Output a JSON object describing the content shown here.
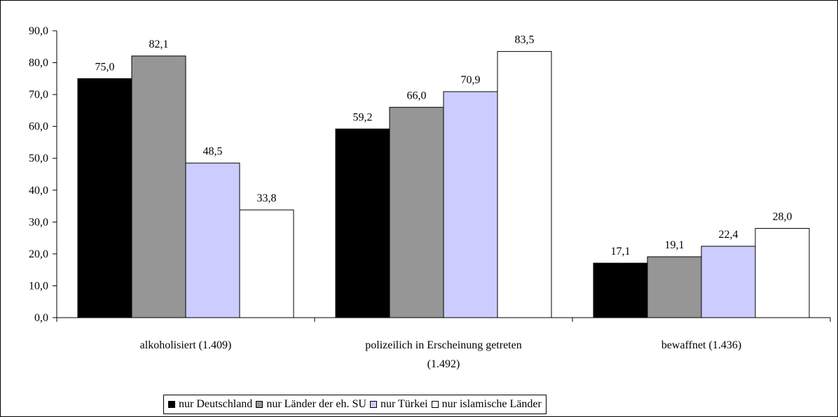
{
  "chart_data": {
    "type": "bar",
    "categories": [
      [
        "alkoholisiert (1.409)"
      ],
      [
        "polizeilich in Erscheinung getreten",
        "(1.492)"
      ],
      [
        "bewaffnet (1.436)"
      ]
    ],
    "series": [
      {
        "name": "nur  Deutschland",
        "color": "#000000",
        "values": [
          75.0,
          59.2,
          17.1
        ],
        "labels": [
          "75,0",
          "59,2",
          "17,1"
        ]
      },
      {
        "name": "nur Länder der eh. SU",
        "color": "#969696",
        "values": [
          82.1,
          66.0,
          19.1
        ],
        "labels": [
          "82,1",
          "66,0",
          "19,1"
        ]
      },
      {
        "name": "nur Türkei",
        "color": "#ccccff",
        "values": [
          48.5,
          70.9,
          22.4
        ],
        "labels": [
          "48,5",
          "70,9",
          "22,4"
        ]
      },
      {
        "name": "nur islamische Länder",
        "color": "#ffffff",
        "values": [
          33.8,
          83.5,
          28.0
        ],
        "labels": [
          "33,8",
          "83,5",
          "28,0"
        ]
      }
    ],
    "ylim": [
      0,
      90
    ],
    "yticks": [
      0,
      10,
      20,
      30,
      40,
      50,
      60,
      70,
      80,
      90
    ],
    "ytick_labels": [
      "0,0",
      "10,0",
      "20,0",
      "30,0",
      "40,0",
      "50,0",
      "60,0",
      "70,0",
      "80,0",
      "90,0"
    ],
    "grid": false,
    "legend_position": "bottom"
  }
}
